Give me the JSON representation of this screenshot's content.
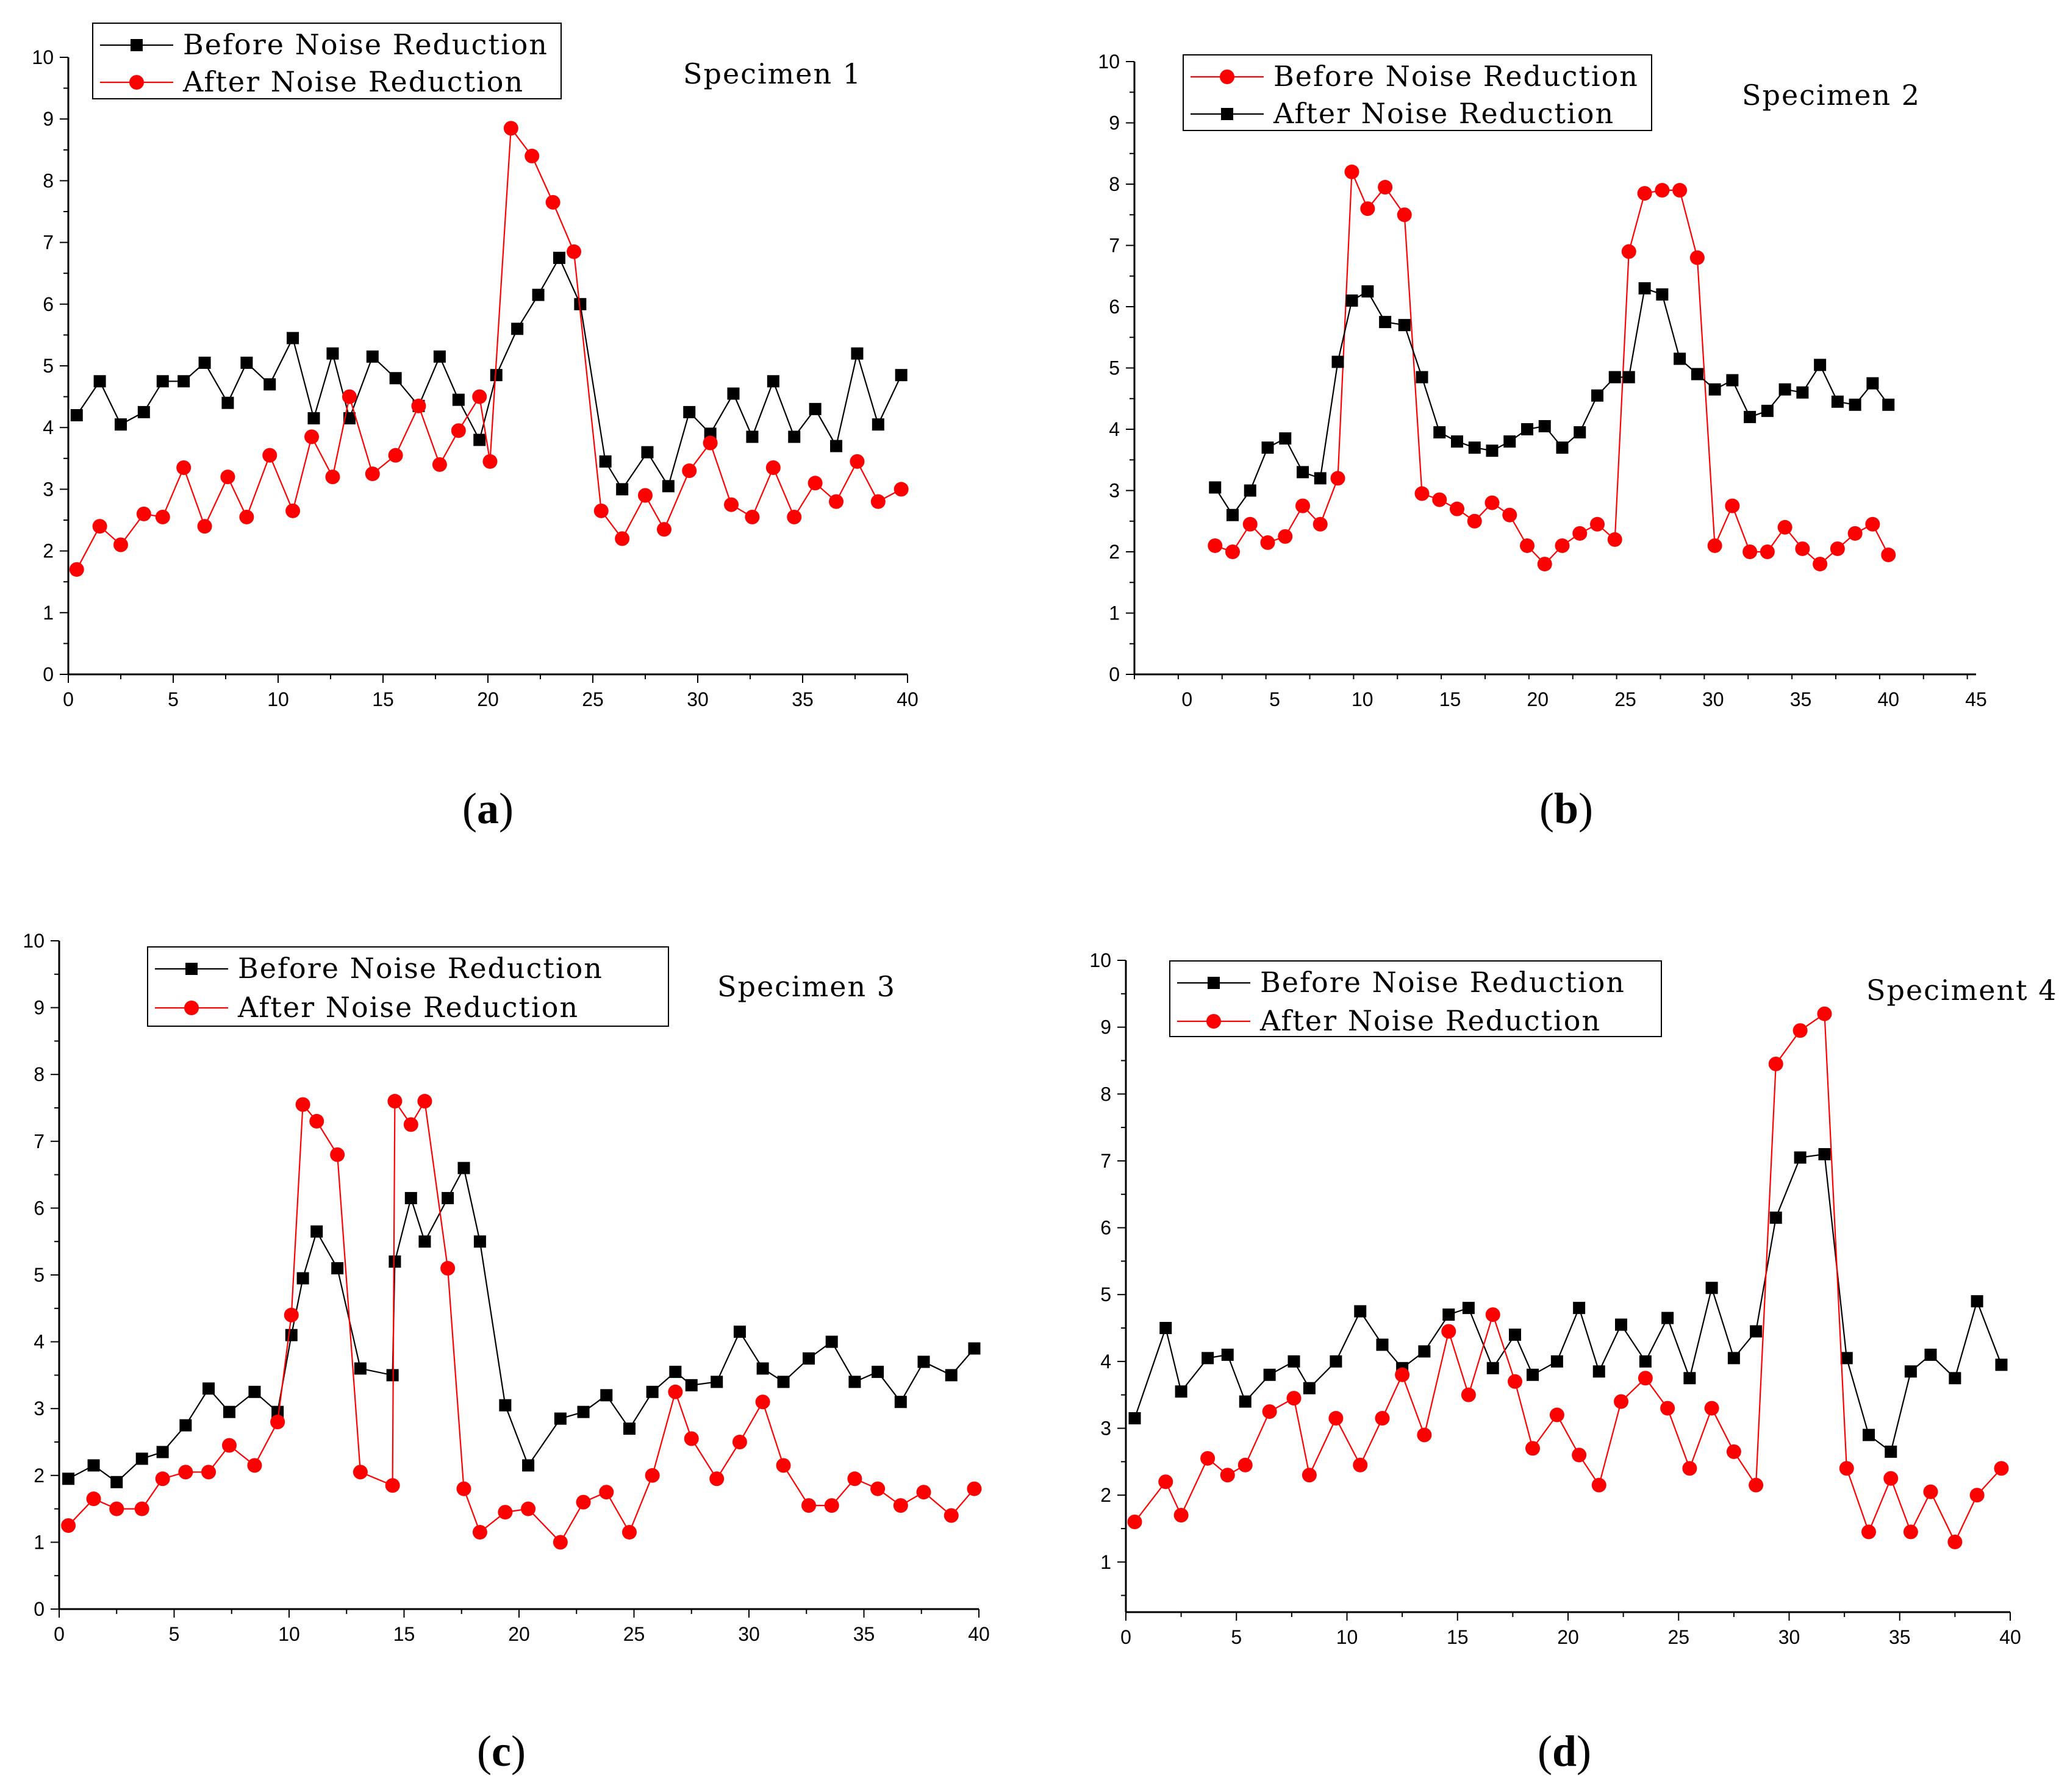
{
  "figure": {
    "colors": {
      "black_series": "#000000",
      "red_series": "#ff0000",
      "axis": "#000000"
    }
  },
  "chart_data": [
    {
      "type": "line",
      "panel_label": "a",
      "title": "Specimen 1",
      "xlim": [
        0,
        40
      ],
      "ylim": [
        0,
        10
      ],
      "x_ticks": [
        "0",
        "5",
        "10",
        "15",
        "20",
        "25",
        "30",
        "35",
        "40"
      ],
      "y_ticks": [
        "0",
        "1",
        "2",
        "3",
        "4",
        "5",
        "6",
        "7",
        "8",
        "9",
        "10"
      ],
      "legend": [
        "Before Noise Reduction",
        "After Noise Reduction"
      ],
      "series": [
        {
          "name": "Before Noise Reduction",
          "color": "#000000",
          "marker": "square",
          "x": [
            0.4,
            1.5,
            2.5,
            3.6,
            4.5,
            5.5,
            6.5,
            7.6,
            8.5,
            9.6,
            10.7,
            11.7,
            12.6,
            13.4,
            14.5,
            15.6,
            16.7,
            17.7,
            18.6,
            19.6,
            20.4,
            21.4,
            22.4,
            23.4,
            24.4,
            25.6,
            26.4,
            27.6,
            28.6,
            29.6,
            30.6,
            31.7,
            32.6,
            33.6,
            34.6,
            35.6,
            36.6,
            37.6,
            38.6,
            39.7
          ],
          "y": [
            4.2,
            4.75,
            4.05,
            4.25,
            4.75,
            4.75,
            5.05,
            4.4,
            5.05,
            4.7,
            5.45,
            4.15,
            5.2,
            4.15,
            5.15,
            4.8,
            4.35,
            5.15,
            4.45,
            3.8,
            4.85,
            5.6,
            6.15,
            6.75,
            6.0,
            3.45,
            3.0,
            3.6,
            3.05,
            4.25,
            3.9,
            4.55,
            3.85,
            4.75,
            3.85,
            4.3,
            3.7,
            5.2,
            4.05,
            4.85
          ]
        },
        {
          "name": "After Noise Reduction",
          "color": "#ff0000",
          "marker": "circle",
          "x": [
            0.4,
            1.5,
            2.5,
            3.6,
            4.5,
            5.5,
            6.5,
            7.6,
            8.5,
            9.6,
            10.7,
            11.6,
            12.6,
            13.4,
            14.5,
            15.6,
            16.7,
            17.7,
            18.6,
            19.6,
            20.1,
            21.1,
            22.1,
            23.1,
            24.1,
            25.4,
            26.4,
            27.5,
            28.4,
            29.6,
            30.6,
            31.6,
            32.6,
            33.6,
            34.6,
            35.6,
            36.6,
            37.6,
            38.6,
            39.7
          ],
          "y": [
            1.7,
            2.4,
            2.1,
            2.6,
            2.55,
            3.35,
            2.4,
            3.2,
            2.55,
            3.55,
            2.65,
            3.85,
            3.2,
            4.5,
            3.25,
            3.55,
            4.35,
            3.4,
            3.95,
            4.5,
            3.45,
            8.85,
            8.4,
            7.65,
            6.85,
            2.65,
            2.2,
            2.9,
            2.35,
            3.3,
            3.75,
            2.75,
            2.55,
            3.35,
            2.55,
            3.1,
            2.8,
            3.45,
            2.8,
            3.0
          ]
        }
      ]
    },
    {
      "type": "line",
      "panel_label": "b",
      "title": "Specimen 2",
      "xlim": [
        -3,
        45
      ],
      "ylim": [
        0,
        10
      ],
      "x_ticks": [
        "0",
        "5",
        "10",
        "15",
        "20",
        "25",
        "30",
        "35",
        "40",
        "45"
      ],
      "y_ticks": [
        "0",
        "1",
        "2",
        "3",
        "4",
        "5",
        "6",
        "7",
        "8",
        "9",
        "10"
      ],
      "legend": [
        "Before Noise Reduction",
        "After Noise Reduction"
      ],
      "series": [
        {
          "name": "Before Noise Reduction",
          "color": "#ff0000",
          "marker": "circle",
          "x": [
            1.6,
            2.6,
            3.6,
            4.6,
            5.6,
            6.6,
            7.6,
            8.6,
            9.4,
            10.3,
            11.3,
            12.4,
            13.4,
            14.4,
            15.4,
            16.4,
            17.4,
            18.4,
            19.4,
            20.4,
            21.4,
            22.4,
            23.4,
            24.4,
            25.2,
            26.1,
            27.1,
            28.1,
            29.1,
            30.1,
            31.1,
            32.1,
            33.1,
            34.1,
            35.1,
            36.1,
            37.1,
            38.1,
            39.1,
            40.0
          ],
          "y": [
            2.1,
            2.0,
            2.45,
            2.15,
            2.25,
            2.75,
            2.45,
            3.2,
            8.2,
            7.6,
            7.95,
            7.5,
            2.95,
            2.85,
            2.7,
            2.5,
            2.8,
            2.6,
            2.1,
            1.8,
            2.1,
            2.3,
            2.45,
            2.2,
            6.9,
            7.85,
            7.9,
            7.9,
            6.8,
            2.1,
            2.75,
            2.0,
            2.0,
            2.4,
            2.05,
            1.8,
            2.05,
            2.3,
            2.45,
            1.95
          ]
        },
        {
          "name": "After Noise Reduction",
          "color": "#000000",
          "marker": "square",
          "x": [
            1.6,
            2.6,
            3.6,
            4.6,
            5.6,
            6.6,
            7.6,
            8.6,
            9.4,
            10.3,
            11.3,
            12.4,
            13.4,
            14.4,
            15.4,
            16.4,
            17.4,
            18.4,
            19.4,
            20.4,
            21.4,
            22.4,
            23.4,
            24.4,
            25.2,
            26.1,
            27.1,
            28.1,
            29.1,
            30.1,
            31.1,
            32.1,
            33.1,
            34.1,
            35.1,
            36.1,
            37.1,
            38.1,
            39.1,
            40.0
          ],
          "y": [
            3.05,
            2.6,
            3.0,
            3.7,
            3.85,
            3.3,
            3.2,
            5.1,
            6.1,
            6.25,
            5.75,
            5.7,
            4.85,
            3.95,
            3.8,
            3.7,
            3.65,
            3.8,
            4.0,
            4.05,
            3.7,
            3.95,
            4.55,
            4.85,
            4.85,
            6.3,
            6.2,
            5.15,
            4.9,
            4.65,
            4.8,
            4.2,
            4.3,
            4.65,
            4.6,
            5.05,
            4.45,
            4.4,
            4.75,
            4.4
          ]
        }
      ]
    },
    {
      "type": "line",
      "panel_label": "c",
      "title": "Specimen 3",
      "xlim": [
        0,
        40
      ],
      "ylim": [
        0,
        10
      ],
      "x_ticks": [
        "0",
        "5",
        "10",
        "15",
        "20",
        "25",
        "30",
        "35",
        "40"
      ],
      "y_ticks": [
        "0",
        "1",
        "2",
        "3",
        "4",
        "5",
        "6",
        "7",
        "8",
        "9",
        "10"
      ],
      "legend": [
        "Before Noise Reduction",
        "After Noise Reduction"
      ],
      "series": [
        {
          "name": "Before Noise Reduction",
          "color": "#000000",
          "marker": "square",
          "x": [
            0.4,
            1.5,
            2.5,
            3.6,
            4.5,
            5.5,
            6.5,
            7.4,
            8.5,
            9.5,
            10.1,
            10.6,
            11.2,
            12.1,
            13.1,
            14.5,
            14.6,
            15.3,
            15.9,
            16.9,
            17.6,
            18.3,
            19.4,
            20.4,
            21.8,
            22.8,
            23.8,
            24.8,
            25.8,
            26.8,
            27.5,
            28.6,
            29.6,
            30.6,
            31.5,
            32.6,
            33.6,
            34.6,
            35.6,
            36.6,
            37.6,
            38.8,
            39.8
          ],
          "y": [
            1.95,
            2.15,
            1.9,
            2.25,
            2.35,
            2.75,
            3.3,
            2.95,
            3.25,
            2.95,
            4.1,
            4.95,
            5.65,
            5.1,
            3.6,
            3.5,
            5.2,
            6.15,
            5.5,
            6.15,
            6.6,
            5.5,
            3.05,
            2.15,
            2.85,
            2.95,
            3.2,
            2.7,
            3.25,
            3.55,
            3.35,
            3.4,
            4.15,
            3.6,
            3.4,
            3.75,
            4.0,
            3.4,
            3.55,
            3.1,
            3.7,
            3.5,
            3.9
          ]
        },
        {
          "name": "After Noise Reduction",
          "color": "#ff0000",
          "marker": "circle",
          "x": [
            0.4,
            1.5,
            2.5,
            3.6,
            4.5,
            5.5,
            6.5,
            7.4,
            8.5,
            9.5,
            10.1,
            10.6,
            11.2,
            12.1,
            13.1,
            14.5,
            14.6,
            15.3,
            15.9,
            16.9,
            17.6,
            18.3,
            19.4,
            20.4,
            21.8,
            22.8,
            23.8,
            24.8,
            25.8,
            26.8,
            27.5,
            28.6,
            29.6,
            30.6,
            31.5,
            32.6,
            33.6,
            34.6,
            35.6,
            36.6,
            37.6,
            38.8,
            39.8
          ],
          "y": [
            1.25,
            1.65,
            1.5,
            1.5,
            1.95,
            2.05,
            2.05,
            2.45,
            2.15,
            2.8,
            4.4,
            7.55,
            7.3,
            6.8,
            2.05,
            1.85,
            7.6,
            7.25,
            7.6,
            5.1,
            1.8,
            1.15,
            1.45,
            1.5,
            1.0,
            1.6,
            1.75,
            1.15,
            2.0,
            3.25,
            2.55,
            1.95,
            2.5,
            3.1,
            2.15,
            1.55,
            1.55,
            1.95,
            1.8,
            1.55,
            1.75,
            1.4,
            1.8
          ]
        }
      ]
    },
    {
      "type": "line",
      "panel_label": "d",
      "title": "Speciment 4",
      "xlim": [
        0,
        40
      ],
      "ylim": [
        0.25,
        10
      ],
      "x_ticks": [
        "0",
        "5",
        "10",
        "15",
        "20",
        "25",
        "30",
        "35",
        "40"
      ],
      "y_ticks": [
        "1",
        "2",
        "3",
        "4",
        "5",
        "6",
        "7",
        "8",
        "9",
        "10"
      ],
      "legend": [
        "Before Noise Reduction",
        "After Noise Reduction"
      ],
      "series": [
        {
          "name": "Before Noise Reduction",
          "color": "#000000",
          "marker": "square",
          "x": [
            0.4,
            1.8,
            2.5,
            3.7,
            4.6,
            5.4,
            6.5,
            7.6,
            8.3,
            9.5,
            10.6,
            11.6,
            12.5,
            13.5,
            14.6,
            15.5,
            16.6,
            17.6,
            18.4,
            19.5,
            20.5,
            21.4,
            22.4,
            23.5,
            24.5,
            25.5,
            26.5,
            27.5,
            28.5,
            29.4,
            30.5,
            31.6,
            32.6,
            33.6,
            34.6,
            35.5,
            36.4,
            37.5,
            38.5,
            39.6
          ],
          "y": [
            3.15,
            4.5,
            3.55,
            4.05,
            4.1,
            3.4,
            3.8,
            4.0,
            3.6,
            4.0,
            4.75,
            4.25,
            3.9,
            4.15,
            4.7,
            4.8,
            3.9,
            4.4,
            3.8,
            4.0,
            4.8,
            3.85,
            4.55,
            4.0,
            4.65,
            3.75,
            5.1,
            4.05,
            4.45,
            6.15,
            7.05,
            7.1,
            4.05,
            2.9,
            2.65,
            3.85,
            4.1,
            3.75,
            4.9,
            3.95
          ]
        },
        {
          "name": "After Noise Reduction",
          "color": "#ff0000",
          "marker": "circle",
          "x": [
            0.4,
            1.8,
            2.5,
            3.7,
            4.6,
            5.4,
            6.5,
            7.6,
            8.3,
            9.5,
            10.6,
            11.6,
            12.5,
            13.5,
            14.6,
            15.5,
            16.6,
            17.6,
            18.4,
            19.5,
            20.5,
            21.4,
            22.4,
            23.5,
            24.5,
            25.5,
            26.5,
            27.5,
            28.5,
            29.4,
            30.5,
            31.6,
            32.6,
            33.6,
            34.6,
            35.5,
            36.4,
            37.5,
            38.5,
            39.6
          ],
          "y": [
            1.6,
            2.2,
            1.7,
            2.55,
            2.3,
            2.45,
            3.25,
            3.45,
            2.3,
            3.15,
            2.45,
            3.15,
            3.8,
            2.9,
            4.45,
            3.5,
            4.7,
            3.7,
            2.7,
            3.2,
            2.6,
            2.15,
            3.4,
            3.75,
            3.3,
            2.4,
            3.3,
            2.65,
            2.15,
            8.45,
            8.95,
            9.2,
            2.4,
            1.45,
            2.25,
            1.45,
            2.05,
            1.3,
            2.0,
            2.4
          ]
        }
      ]
    }
  ]
}
